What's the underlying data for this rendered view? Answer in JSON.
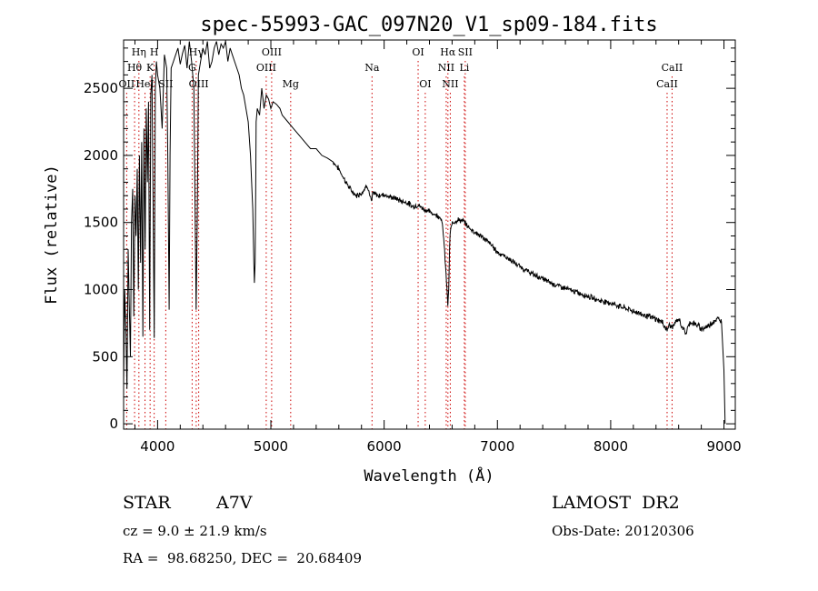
{
  "chart_data": {
    "type": "line",
    "title": "spec-55993-GAC_097N20_V1_sp09-184.fits",
    "xlabel": "Wavelength (Å)",
    "ylabel": "Flux (relative)",
    "xlim": [
      3700,
      9100
    ],
    "ylim": [
      -40,
      2860
    ],
    "xticks": [
      4000,
      5000,
      6000,
      7000,
      8000,
      9000
    ],
    "yticks": [
      0,
      500,
      1000,
      1500,
      2000,
      2500
    ],
    "line_color": "#000000",
    "marker_color": "#cc0000",
    "series": [
      {
        "x": [
          3700,
          3710,
          3720,
          3730,
          3740,
          3750,
          3760,
          3770,
          3780,
          3790,
          3800,
          3810,
          3820,
          3830,
          3840,
          3850,
          3860,
          3870,
          3880,
          3890,
          3900,
          3910,
          3920,
          3930,
          3940,
          3950,
          3960,
          3970,
          3980,
          3990,
          4000,
          4020,
          4040,
          4060,
          4080,
          4090,
          4102,
          4110,
          4120,
          4140,
          4160,
          4180,
          4200,
          4220,
          4240,
          4260,
          4280,
          4300,
          4320,
          4330,
          4340,
          4350,
          4360,
          4380,
          4400,
          4420,
          4440,
          4460,
          4480,
          4500,
          4520,
          4540,
          4560,
          4580,
          4600,
          4620,
          4640,
          4660,
          4680,
          4700,
          4720,
          4740,
          4760,
          4780,
          4800,
          4820,
          4840,
          4850,
          4855,
          4861,
          4866,
          4870,
          4880,
          4900,
          4920,
          4940,
          4960,
          4980,
          5000,
          5020,
          5050,
          5080,
          5100,
          5150,
          5200,
          5250,
          5300,
          5350,
          5400,
          5450,
          5500,
          5550,
          5600,
          5650,
          5700,
          5750,
          5800,
          5850,
          5890,
          5900,
          5950,
          6000,
          6050,
          6100,
          6150,
          6200,
          6250,
          6300,
          6350,
          6400,
          6450,
          6500,
          6520,
          6540,
          6555,
          6563,
          6570,
          6580,
          6600,
          6650,
          6700,
          6750,
          6800,
          6850,
          6900,
          6950,
          7000,
          7100,
          7200,
          7300,
          7400,
          7500,
          7600,
          7700,
          7800,
          7900,
          8000,
          8100,
          8200,
          8300,
          8400,
          8450,
          8498,
          8520,
          8542,
          8580,
          8600,
          8662,
          8700,
          8750,
          8800,
          8850,
          8900,
          8950,
          8980,
          9000,
          9010
        ],
        "y": [
          300,
          1000,
          700,
          260,
          1300,
          900,
          500,
          1500,
          1750,
          800,
          1700,
          1400,
          1900,
          1000,
          2000,
          1200,
          2100,
          650,
          2200,
          1300,
          2350,
          1800,
          2400,
          700,
          2450,
          2600,
          1700,
          640,
          2500,
          2700,
          2600,
          2500,
          2200,
          2750,
          2650,
          2000,
          850,
          2000,
          2650,
          2700,
          2750,
          2800,
          2680,
          2760,
          2820,
          2650,
          2850,
          2700,
          2500,
          1700,
          850,
          1500,
          2600,
          2700,
          2800,
          2750,
          2850,
          2650,
          2700,
          2800,
          2850,
          2750,
          2830,
          2800,
          2850,
          2700,
          2800,
          2750,
          2700,
          2650,
          2600,
          2500,
          2450,
          2350,
          2250,
          2000,
          1600,
          1200,
          1050,
          1200,
          1700,
          2250,
          2350,
          2300,
          2500,
          2350,
          2450,
          2420,
          2350,
          2400,
          2380,
          2350,
          2300,
          2250,
          2200,
          2150,
          2100,
          2050,
          2050,
          2000,
          1980,
          1950,
          1900,
          1820,
          1750,
          1700,
          1720,
          1780,
          1650,
          1720,
          1700,
          1710,
          1690,
          1680,
          1660,
          1650,
          1620,
          1630,
          1600,
          1580,
          1560,
          1540,
          1450,
          1200,
          1000,
          870,
          1000,
          1400,
          1500,
          1520,
          1510,
          1460,
          1430,
          1400,
          1370,
          1330,
          1280,
          1230,
          1170,
          1120,
          1080,
          1040,
          1010,
          980,
          950,
          920,
          900,
          870,
          840,
          810,
          780,
          760,
          700,
          740,
          720,
          760,
          780,
          670,
          760,
          740,
          710,
          720,
          760,
          780,
          760,
          400,
          0
        ],
        "smooth_from": 5550,
        "noise": 30
      }
    ],
    "lines": [
      {
        "label": "Hη",
        "wavelength": 3835,
        "row": 0
      },
      {
        "label": "H",
        "wavelength": 3970,
        "row": 0
      },
      {
        "label": "Hθ",
        "wavelength": 3797,
        "row": 1
      },
      {
        "label": "K",
        "wavelength": 3934,
        "row": 1
      },
      {
        "label": "OII",
        "wavelength": 3727,
        "row": 2
      },
      {
        "label": "HeI",
        "wavelength": 3889,
        "row": 2
      },
      {
        "label": "SII",
        "wavelength": 4072,
        "row": 2
      },
      {
        "label": "Hγ",
        "wavelength": 4341,
        "row": 0
      },
      {
        "label": "G",
        "wavelength": 4305,
        "row": 1
      },
      {
        "label": "OIII",
        "wavelength": 4363,
        "row": 2
      },
      {
        "label": "OIII",
        "wavelength": 5007,
        "row": 0
      },
      {
        "label": "OIII",
        "wavelength": 4959,
        "row": 1
      },
      {
        "label": "Mg",
        "wavelength": 5175,
        "row": 2
      },
      {
        "label": "Na",
        "wavelength": 5893,
        "row": 1
      },
      {
        "label": "OI",
        "wavelength": 6300,
        "row": 0
      },
      {
        "label": "OI",
        "wavelength": 6363,
        "row": 2
      },
      {
        "label": "Hα",
        "wavelength": 6563,
        "row": 0
      },
      {
        "label": "SII",
        "wavelength": 6716,
        "row": 0
      },
      {
        "label": "NII",
        "wavelength": 6548,
        "row": 1
      },
      {
        "label": "Li",
        "wavelength": 6708,
        "row": 1
      },
      {
        "label": "NII",
        "wavelength": 6584,
        "row": 2
      },
      {
        "label": "CaII",
        "wavelength": 8542,
        "row": 1
      },
      {
        "label": "CaII",
        "wavelength": 8498,
        "row": 2
      }
    ]
  },
  "info": {
    "object_class": "STAR",
    "subclass": "A7V",
    "survey": "LAMOST  DR2",
    "cz": "cz = 9.0 ± 21.9 km/s",
    "obs_date": "Obs-Date: 20120306",
    "coords": "RA =  98.68250, DEC =  20.68409"
  }
}
